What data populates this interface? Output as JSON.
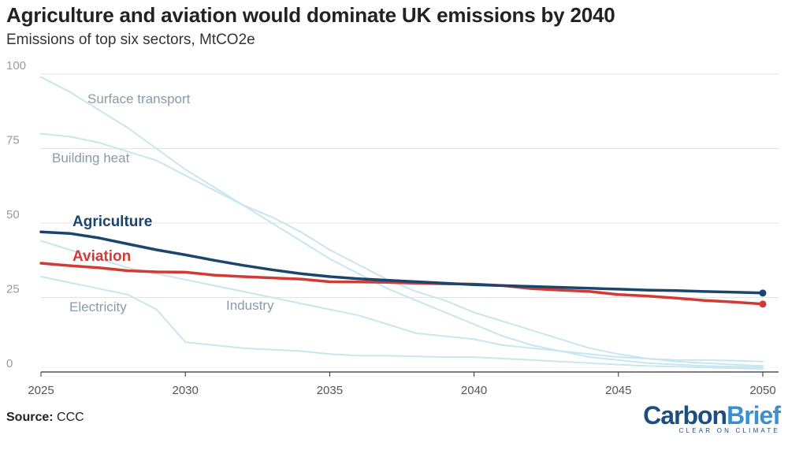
{
  "header": {
    "title": "Agriculture and aviation would dominate UK emissions by 2040",
    "subtitle": "Emissions of top six sectors, MtCO2e"
  },
  "footer": {
    "source_label": "Source:",
    "source_value": "CCC",
    "logo_carbon": "Carbon",
    "logo_brief": "Brief",
    "logo_tagline": "CLEAR ON CLIMATE"
  },
  "colors": {
    "agriculture": "#1b456d",
    "aviation": "#d13b35",
    "background_series": "#c8e6ef",
    "background_label": "#8a9ba8",
    "grid": "#e3e3e3",
    "axis": "#333333"
  },
  "chart_data": {
    "type": "line",
    "title": "Agriculture and aviation would dominate UK emissions by 2040",
    "subtitle": "Emissions of top six sectors, MtCO2e",
    "xlabel": "",
    "ylabel": "",
    "xlim": [
      2025,
      2050
    ],
    "ylim": [
      0,
      100
    ],
    "x_ticks": [
      2025,
      2030,
      2035,
      2040,
      2045,
      2050
    ],
    "y_ticks": [
      0,
      25,
      50,
      75,
      100
    ],
    "grid": true,
    "series": [
      {
        "name": "Surface transport",
        "highlight": false,
        "points": [
          [
            2025,
            99
          ],
          [
            2026,
            94
          ],
          [
            2027,
            88
          ],
          [
            2028,
            82
          ],
          [
            2029,
            75
          ],
          [
            2030,
            68
          ],
          [
            2031,
            62
          ],
          [
            2032,
            56
          ],
          [
            2033,
            50
          ],
          [
            2034,
            44
          ],
          [
            2035,
            38
          ],
          [
            2036,
            33
          ],
          [
            2037,
            28
          ],
          [
            2038,
            24
          ],
          [
            2039,
            20
          ],
          [
            2040,
            16
          ],
          [
            2041,
            12
          ],
          [
            2042,
            9
          ],
          [
            2043,
            7
          ],
          [
            2044,
            5
          ],
          [
            2045,
            4
          ],
          [
            2046,
            3
          ],
          [
            2047,
            2.5
          ],
          [
            2048,
            2
          ],
          [
            2049,
            1.8
          ],
          [
            2050,
            1.5
          ]
        ]
      },
      {
        "name": "Building heat",
        "highlight": false,
        "points": [
          [
            2025,
            80
          ],
          [
            2026,
            79
          ],
          [
            2027,
            77
          ],
          [
            2028,
            74
          ],
          [
            2029,
            71
          ],
          [
            2030,
            66
          ],
          [
            2031,
            61
          ],
          [
            2032,
            56
          ],
          [
            2033,
            52
          ],
          [
            2034,
            47
          ],
          [
            2035,
            41
          ],
          [
            2036,
            36
          ],
          [
            2037,
            31
          ],
          [
            2038,
            27
          ],
          [
            2039,
            24
          ],
          [
            2040,
            20
          ],
          [
            2041,
            17
          ],
          [
            2042,
            14
          ],
          [
            2043,
            11
          ],
          [
            2044,
            8
          ],
          [
            2045,
            6
          ],
          [
            2046,
            4.5
          ],
          [
            2047,
            3.5
          ],
          [
            2048,
            3
          ],
          [
            2049,
            2.5
          ],
          [
            2050,
            2
          ]
        ]
      },
      {
        "name": "Industry",
        "highlight": false,
        "points": [
          [
            2025,
            44
          ],
          [
            2026,
            41
          ],
          [
            2027,
            38
          ],
          [
            2028,
            35
          ],
          [
            2029,
            33
          ],
          [
            2030,
            31
          ],
          [
            2031,
            29
          ],
          [
            2032,
            27
          ],
          [
            2033,
            25
          ],
          [
            2034,
            23
          ],
          [
            2035,
            21
          ],
          [
            2036,
            19
          ],
          [
            2037,
            16
          ],
          [
            2038,
            13
          ],
          [
            2039,
            12
          ],
          [
            2040,
            11
          ],
          [
            2041,
            9
          ],
          [
            2042,
            8
          ],
          [
            2043,
            7
          ],
          [
            2044,
            6
          ],
          [
            2045,
            5
          ],
          [
            2046,
            4.5
          ],
          [
            2047,
            4
          ],
          [
            2048,
            4
          ],
          [
            2049,
            3.8
          ],
          [
            2050,
            3.5
          ]
        ]
      },
      {
        "name": "Electricity",
        "highlight": false,
        "points": [
          [
            2025,
            32
          ],
          [
            2026,
            30
          ],
          [
            2027,
            28
          ],
          [
            2028,
            26
          ],
          [
            2029,
            21
          ],
          [
            2030,
            10
          ],
          [
            2031,
            9
          ],
          [
            2032,
            8
          ],
          [
            2033,
            7.5
          ],
          [
            2034,
            7
          ],
          [
            2035,
            6
          ],
          [
            2036,
            5.5
          ],
          [
            2037,
            5.5
          ],
          [
            2038,
            5.2
          ],
          [
            2039,
            5
          ],
          [
            2040,
            5
          ],
          [
            2041,
            4.5
          ],
          [
            2042,
            4
          ],
          [
            2043,
            3.5
          ],
          [
            2044,
            3
          ],
          [
            2045,
            2.5
          ],
          [
            2046,
            2
          ],
          [
            2047,
            1.8
          ],
          [
            2048,
            1.5
          ],
          [
            2049,
            1.3
          ],
          [
            2050,
            1
          ]
        ]
      },
      {
        "name": "Aviation",
        "highlight": true,
        "points": [
          [
            2025,
            36.5
          ],
          [
            2026,
            35.7
          ],
          [
            2027,
            35
          ],
          [
            2028,
            34
          ],
          [
            2029,
            33.6
          ],
          [
            2030,
            33.5
          ],
          [
            2031,
            32.5
          ],
          [
            2032,
            32
          ],
          [
            2033,
            31.6
          ],
          [
            2034,
            31.2
          ],
          [
            2035,
            30.3
          ],
          [
            2036,
            30.2
          ],
          [
            2037,
            30.1
          ],
          [
            2038,
            29.8
          ],
          [
            2039,
            29.6
          ],
          [
            2040,
            29.5
          ],
          [
            2041,
            29
          ],
          [
            2042,
            28
          ],
          [
            2043,
            27.5
          ],
          [
            2044,
            27
          ],
          [
            2045,
            26
          ],
          [
            2046,
            25.5
          ],
          [
            2047,
            24.8
          ],
          [
            2048,
            24
          ],
          [
            2049,
            23.5
          ],
          [
            2050,
            22.8
          ]
        ]
      },
      {
        "name": "Agriculture",
        "highlight": true,
        "points": [
          [
            2025,
            47
          ],
          [
            2026,
            46.5
          ],
          [
            2027,
            45
          ],
          [
            2028,
            43
          ],
          [
            2029,
            41
          ],
          [
            2030,
            39.3
          ],
          [
            2031,
            37.5
          ],
          [
            2032,
            35.8
          ],
          [
            2033,
            34.3
          ],
          [
            2034,
            33
          ],
          [
            2035,
            32
          ],
          [
            2036,
            31.3
          ],
          [
            2037,
            30.8
          ],
          [
            2038,
            30.3
          ],
          [
            2039,
            29.8
          ],
          [
            2040,
            29.3
          ],
          [
            2041,
            29
          ],
          [
            2042,
            28.7
          ],
          [
            2043,
            28.4
          ],
          [
            2044,
            28.1
          ],
          [
            2045,
            27.8
          ],
          [
            2046,
            27.5
          ],
          [
            2047,
            27.3
          ],
          [
            2048,
            27
          ],
          [
            2049,
            26.8
          ],
          [
            2050,
            26.5
          ]
        ]
      }
    ]
  }
}
